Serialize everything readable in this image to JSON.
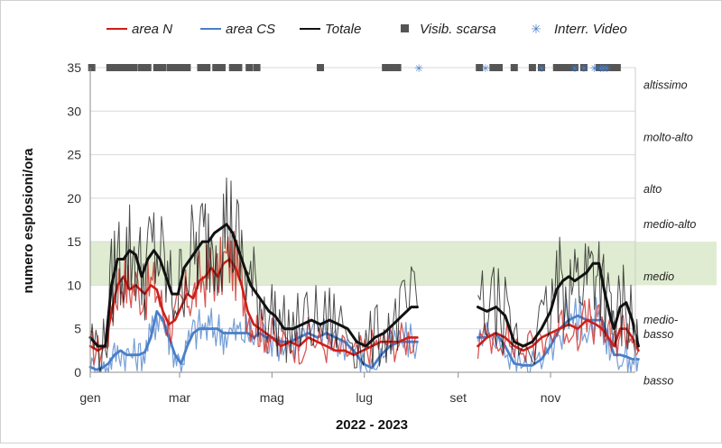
{
  "chart_data": {
    "type": "line",
    "xlabel": "2022 - 2023",
    "ylabel": "numero esplosioni/ora",
    "ylim": [
      0,
      35
    ],
    "y_ticks": [
      0,
      5,
      10,
      15,
      20,
      25,
      30,
      35
    ],
    "x_ticks": [
      {
        "label": "gen",
        "day": 0
      },
      {
        "label": "mar",
        "day": 59
      },
      {
        "label": "mag",
        "day": 120
      },
      {
        "label": "lug",
        "day": 181
      },
      {
        "label": "set",
        "day": 243
      },
      {
        "label": "nov",
        "day": 304
      }
    ],
    "xlim": [
      0,
      360
    ],
    "grid": "horizontal",
    "legend_position": "top",
    "band": {
      "label": "medio",
      "y_from": 10,
      "y_to": 15,
      "color": "#dbe9c9"
    },
    "activity_levels": [
      {
        "label": "altissimo",
        "y": 33
      },
      {
        "label": "molto-alto",
        "y": 27
      },
      {
        "label": "alto",
        "y": 21
      },
      {
        "label": "medio-alto",
        "y": 17
      },
      {
        "label": "medio",
        "y": 11
      },
      {
        "label": "medio-\nbasso",
        "y": 6
      },
      {
        "label": "basso",
        "y": -1
      }
    ],
    "series": [
      {
        "name": "area N",
        "color": "#cc1f1a",
        "width": 1.3,
        "smooth_width": 2.6,
        "points": [
          [
            0,
            3
          ],
          [
            5,
            2.5
          ],
          [
            10,
            3
          ],
          [
            14,
            7
          ],
          [
            18,
            10
          ],
          [
            22,
            11
          ],
          [
            26,
            9.5
          ],
          [
            30,
            10
          ],
          [
            36,
            9
          ],
          [
            40,
            10
          ],
          [
            44,
            9.5
          ],
          [
            48,
            7
          ],
          [
            52,
            5.5
          ],
          [
            56,
            6
          ],
          [
            60,
            7.5
          ],
          [
            64,
            9
          ],
          [
            68,
            8.5
          ],
          [
            72,
            10.5
          ],
          [
            76,
            11
          ],
          [
            80,
            12
          ],
          [
            84,
            11
          ],
          [
            88,
            12.5
          ],
          [
            92,
            13
          ],
          [
            96,
            12
          ],
          [
            100,
            10
          ],
          [
            104,
            7
          ],
          [
            108,
            5.5
          ],
          [
            112,
            5
          ],
          [
            116,
            4.5
          ],
          [
            120,
            4
          ],
          [
            126,
            3
          ],
          [
            132,
            3.5
          ],
          [
            138,
            3
          ],
          [
            144,
            4
          ],
          [
            150,
            3.5
          ],
          [
            156,
            3
          ],
          [
            162,
            2.5
          ],
          [
            168,
            2.5
          ],
          [
            174,
            2
          ],
          [
            180,
            2.5
          ],
          [
            186,
            3
          ],
          [
            192,
            3.5
          ],
          [
            198,
            3.5
          ],
          [
            204,
            3.5
          ],
          [
            210,
            4
          ],
          [
            216,
            4
          ]
        ],
        "points2": [
          [
            256,
            3
          ],
          [
            262,
            4
          ],
          [
            268,
            4.5
          ],
          [
            274,
            4
          ],
          [
            280,
            3
          ],
          [
            286,
            2.5
          ],
          [
            292,
            3
          ],
          [
            298,
            4
          ],
          [
            304,
            4.5
          ],
          [
            310,
            5
          ],
          [
            316,
            5.5
          ],
          [
            322,
            5
          ],
          [
            328,
            6
          ],
          [
            334,
            5.5
          ],
          [
            338,
            5
          ],
          [
            342,
            4
          ],
          [
            346,
            3
          ],
          [
            350,
            5
          ],
          [
            354,
            5
          ],
          [
            358,
            4
          ],
          [
            362,
            2.5
          ]
        ]
      },
      {
        "name": "area CS",
        "color": "#4a7fc9",
        "width": 1.2,
        "smooth_width": 2.8,
        "points": [
          [
            0,
            0.6
          ],
          [
            4,
            0.3
          ],
          [
            8,
            0.5
          ],
          [
            12,
            1
          ],
          [
            16,
            2
          ],
          [
            20,
            2.5
          ],
          [
            24,
            2
          ],
          [
            28,
            2
          ],
          [
            32,
            2
          ],
          [
            36,
            2.3
          ],
          [
            40,
            4
          ],
          [
            44,
            7
          ],
          [
            48,
            6
          ],
          [
            52,
            4
          ],
          [
            56,
            2
          ],
          [
            60,
            1
          ],
          [
            64,
            3
          ],
          [
            68,
            4.5
          ],
          [
            72,
            5
          ],
          [
            76,
            5
          ],
          [
            80,
            5
          ],
          [
            84,
            5
          ],
          [
            88,
            4.5
          ],
          [
            92,
            4.5
          ],
          [
            96,
            4.5
          ],
          [
            100,
            4.5
          ],
          [
            104,
            4.5
          ],
          [
            108,
            4
          ],
          [
            112,
            4.5
          ],
          [
            116,
            4
          ],
          [
            120,
            4
          ],
          [
            126,
            3.5
          ],
          [
            132,
            3.5
          ],
          [
            138,
            4
          ],
          [
            144,
            4.5
          ],
          [
            150,
            4
          ],
          [
            156,
            4.5
          ],
          [
            162,
            4
          ],
          [
            168,
            3.5
          ],
          [
            174,
            2.5
          ],
          [
            180,
            1
          ],
          [
            186,
            0.5
          ],
          [
            192,
            2
          ],
          [
            198,
            3
          ],
          [
            204,
            3.5
          ],
          [
            210,
            3.5
          ],
          [
            216,
            3.5
          ]
        ],
        "points2": [
          [
            256,
            4
          ],
          [
            262,
            4
          ],
          [
            268,
            4.5
          ],
          [
            274,
            3
          ],
          [
            280,
            1
          ],
          [
            286,
            0.8
          ],
          [
            292,
            0.8
          ],
          [
            298,
            1.5
          ],
          [
            304,
            3
          ],
          [
            310,
            5
          ],
          [
            316,
            6
          ],
          [
            322,
            6.5
          ],
          [
            328,
            6
          ],
          [
            334,
            6
          ],
          [
            338,
            6
          ],
          [
            342,
            4
          ],
          [
            346,
            2
          ],
          [
            350,
            2
          ],
          [
            354,
            1.8
          ],
          [
            358,
            1.5
          ],
          [
            362,
            1.5
          ]
        ]
      },
      {
        "name": "Totale",
        "color": "#111111",
        "width": 1.0,
        "smooth_width": 3.0,
        "points": [
          [
            0,
            4
          ],
          [
            5,
            3
          ],
          [
            10,
            3
          ],
          [
            14,
            10
          ],
          [
            18,
            13
          ],
          [
            22,
            13
          ],
          [
            26,
            14
          ],
          [
            30,
            13.5
          ],
          [
            34,
            11
          ],
          [
            38,
            13
          ],
          [
            42,
            14
          ],
          [
            46,
            13
          ],
          [
            50,
            11
          ],
          [
            54,
            9
          ],
          [
            58,
            9
          ],
          [
            62,
            12
          ],
          [
            66,
            13
          ],
          [
            70,
            14
          ],
          [
            74,
            15
          ],
          [
            78,
            15
          ],
          [
            82,
            16
          ],
          [
            86,
            16.5
          ],
          [
            90,
            17
          ],
          [
            94,
            16
          ],
          [
            98,
            14
          ],
          [
            102,
            12
          ],
          [
            106,
            10
          ],
          [
            110,
            9
          ],
          [
            114,
            8
          ],
          [
            118,
            7
          ],
          [
            122,
            6.5
          ],
          [
            128,
            5
          ],
          [
            134,
            5
          ],
          [
            140,
            5.5
          ],
          [
            146,
            6
          ],
          [
            152,
            5.5
          ],
          [
            158,
            6
          ],
          [
            164,
            5.5
          ],
          [
            170,
            5
          ],
          [
            176,
            3.5
          ],
          [
            182,
            3
          ],
          [
            188,
            4
          ],
          [
            194,
            4.5
          ],
          [
            200,
            5.5
          ],
          [
            206,
            6.5
          ],
          [
            212,
            7.5
          ],
          [
            216,
            7.5
          ]
        ],
        "points2": [
          [
            256,
            7.5
          ],
          [
            262,
            7
          ],
          [
            268,
            7.5
          ],
          [
            274,
            6.5
          ],
          [
            280,
            3.5
          ],
          [
            286,
            3
          ],
          [
            292,
            3.5
          ],
          [
            298,
            5
          ],
          [
            304,
            7
          ],
          [
            308,
            9.5
          ],
          [
            312,
            10.5
          ],
          [
            316,
            11
          ],
          [
            320,
            10.5
          ],
          [
            324,
            11
          ],
          [
            328,
            11.5
          ],
          [
            332,
            12.5
          ],
          [
            336,
            12.5
          ],
          [
            340,
            9
          ],
          [
            344,
            6
          ],
          [
            346,
            5
          ],
          [
            350,
            7.5
          ],
          [
            354,
            8
          ],
          [
            358,
            6
          ],
          [
            362,
            3
          ]
        ]
      }
    ],
    "markers": {
      "visib_scarsa": {
        "name": "Visib. scarsa",
        "color": "#555555",
        "y": 35,
        "x": [
          1,
          13,
          17,
          21,
          25,
          29,
          34,
          38,
          44,
          48,
          53,
          57,
          61,
          64,
          73,
          77,
          83,
          87,
          94,
          98,
          105,
          110,
          152,
          195,
          198,
          201,
          203,
          257,
          266,
          270,
          280,
          292,
          298,
          308,
          312,
          316,
          320,
          326,
          336,
          340,
          344,
          348
        ]
      },
      "interr_video": {
        "name": "Interr. Video",
        "color": "#4a7fc9",
        "y": 35,
        "x": [
          217,
          261,
          298,
          320,
          326,
          333,
          337,
          339,
          341
        ]
      }
    }
  }
}
